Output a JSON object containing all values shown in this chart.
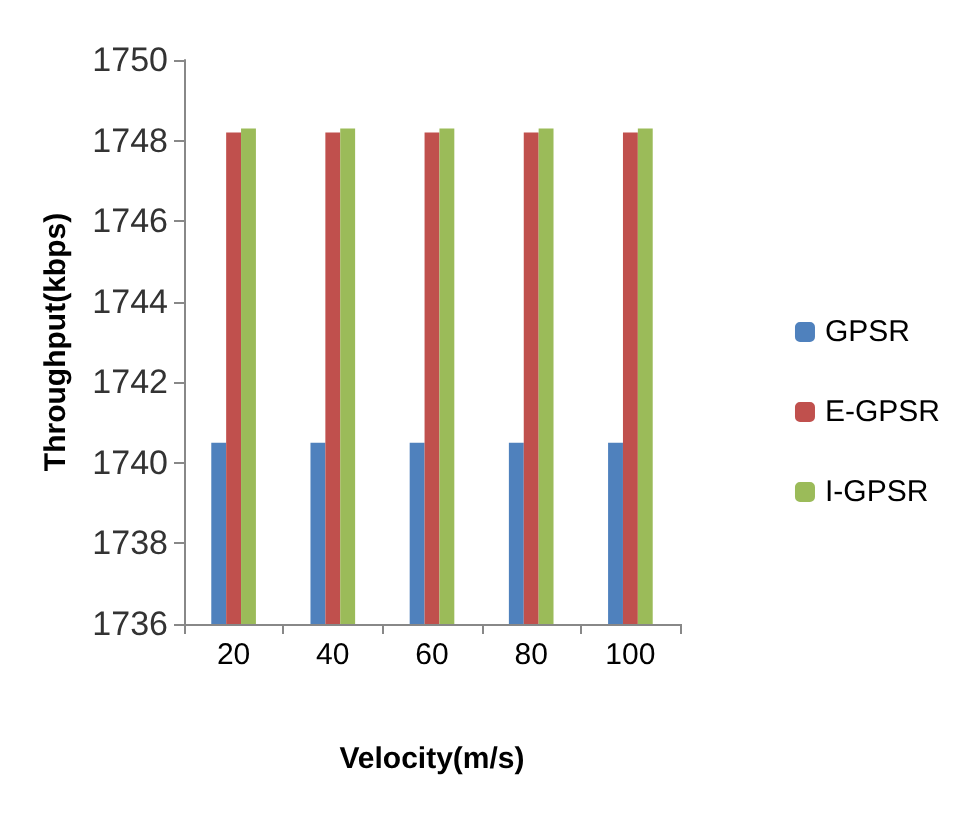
{
  "chart_data": {
    "type": "bar",
    "xlabel": "Velocity(m/s)",
    "ylabel": "Throughput(kbps)",
    "categories": [
      "20",
      "40",
      "60",
      "80",
      "100"
    ],
    "series": [
      {
        "name": "GPSR",
        "color": "#4f81bd",
        "values": [
          1740.5,
          1740.5,
          1740.5,
          1740.5,
          1740.5
        ]
      },
      {
        "name": "E-GPSR",
        "color": "#c0504d",
        "values": [
          1748.2,
          1748.2,
          1748.2,
          1748.2,
          1748.2
        ]
      },
      {
        "name": "I-GPSR",
        "color": "#9bbb59",
        "values": [
          1748.3,
          1748.3,
          1748.3,
          1748.3,
          1748.3
        ]
      }
    ],
    "ylim": [
      1736,
      1750
    ],
    "yticks": [
      1736,
      1738,
      1740,
      1742,
      1744,
      1746,
      1748,
      1750
    ],
    "grid": false,
    "legend": "right"
  }
}
